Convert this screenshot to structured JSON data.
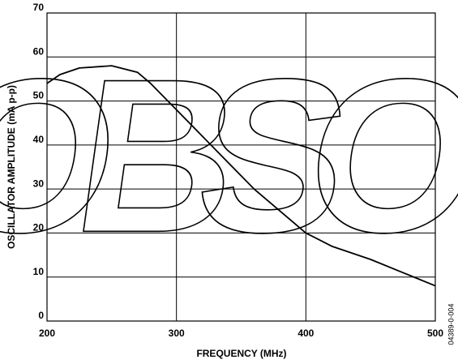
{
  "chart_data": {
    "type": "line",
    "xlabel": "FREQUENCY (MHz)",
    "ylabel": "OSCILLATOR AMPLITUDE (mA p-p)",
    "watermark": "OBSO",
    "figure_id": "04389-0-004",
    "x": [
      200,
      210,
      225,
      250,
      270,
      280,
      290,
      300,
      320,
      340,
      360,
      380,
      400,
      420,
      450,
      475,
      500
    ],
    "series": [
      {
        "color": "#000000",
        "values": [
          54,
          56,
          57.5,
          58,
          56.5,
          54,
          51,
          48,
          42,
          36,
          30,
          25,
          20,
          17,
          14,
          11,
          8
        ]
      }
    ],
    "xlim": [
      200,
      500
    ],
    "xticks": [
      200,
      300,
      400,
      500
    ],
    "ylim": [
      0,
      70
    ],
    "yticks": [
      0,
      10,
      20,
      30,
      40,
      50,
      60,
      70
    ],
    "grid": true
  }
}
